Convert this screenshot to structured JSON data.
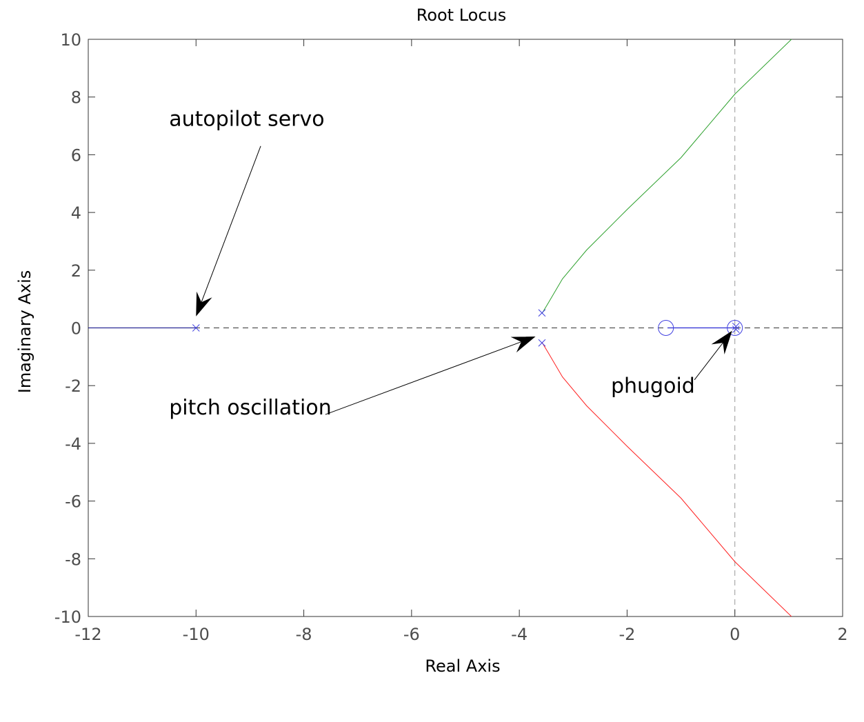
{
  "chart_data": {
    "type": "scatter",
    "title": "Root Locus",
    "xlabel": "Real Axis",
    "ylabel": "Imaginary Axis",
    "xlim": [
      -12,
      2
    ],
    "ylim": [
      -10,
      10
    ],
    "xticks": [
      -12,
      -10,
      -8,
      -6,
      -4,
      -2,
      0,
      2
    ],
    "yticks": [
      -10,
      -8,
      -6,
      -4,
      -2,
      0,
      2,
      4,
      6,
      8,
      10
    ],
    "xtick_labels": [
      "-12",
      "-10",
      "-8",
      "-6",
      "-4",
      "-2",
      "0",
      "2"
    ],
    "ytick_labels": [
      "-10",
      "-8",
      "-6",
      "-4",
      "-2",
      "0",
      "2",
      "4",
      "6",
      "8",
      "10"
    ],
    "grid": false,
    "reference_lines": {
      "real_axis": 0,
      "imaginary_axis": 0,
      "color": "#999999",
      "style": "dashed"
    },
    "series": [
      {
        "color": "#000080",
        "points": [
          [
            -12,
            0
          ],
          [
            -10,
            0
          ]
        ]
      },
      {
        "color": "#2ca02c",
        "points": [
          [
            -3.58,
            0.5
          ],
          [
            -3.45,
            0.9
          ],
          [
            -3.2,
            1.7
          ],
          [
            -2.75,
            2.7
          ],
          [
            -2.0,
            4.1
          ],
          [
            -1.0,
            5.9
          ],
          [
            0,
            8.1
          ],
          [
            1.05,
            10
          ]
        ]
      },
      {
        "color": "#ff2020",
        "points": [
          [
            -3.58,
            -0.5
          ],
          [
            -3.45,
            -0.9
          ],
          [
            -3.2,
            -1.7
          ],
          [
            -2.75,
            -2.7
          ],
          [
            -2.0,
            -4.1
          ],
          [
            -1.0,
            -5.9
          ],
          [
            0,
            -8.1
          ],
          [
            1.05,
            -10
          ]
        ]
      },
      {
        "color": "#0000cc",
        "points": [
          [
            -1.25,
            0
          ],
          [
            0,
            0
          ]
        ]
      }
    ],
    "poles": [
      [
        -10,
        0
      ],
      [
        -3.58,
        0.52
      ],
      [
        -3.58,
        -0.52
      ],
      [
        0.02,
        0.05
      ],
      [
        0.02,
        -0.05
      ]
    ],
    "zeros": [
      [
        -1.28,
        0
      ],
      [
        0,
        0
      ]
    ],
    "pole_zero_color": "#4040e0",
    "annotations": [
      {
        "text": "autopilot servo",
        "text_at": [
          -10.5,
          7
        ],
        "arrow_from": [
          -8.8,
          6.3
        ],
        "arrow_to": [
          -10.0,
          0.4
        ]
      },
      {
        "text": "pitch oscillation",
        "text_at": [
          -10.5,
          -3
        ],
        "arrow_from": [
          -7.6,
          -3.0
        ],
        "arrow_to": [
          -3.7,
          -0.3
        ]
      },
      {
        "text": "phugoid",
        "text_at": [
          -2.3,
          -2.25
        ],
        "arrow_from": [
          -0.75,
          -1.8
        ],
        "arrow_to": [
          -0.05,
          -0.1
        ]
      }
    ]
  }
}
